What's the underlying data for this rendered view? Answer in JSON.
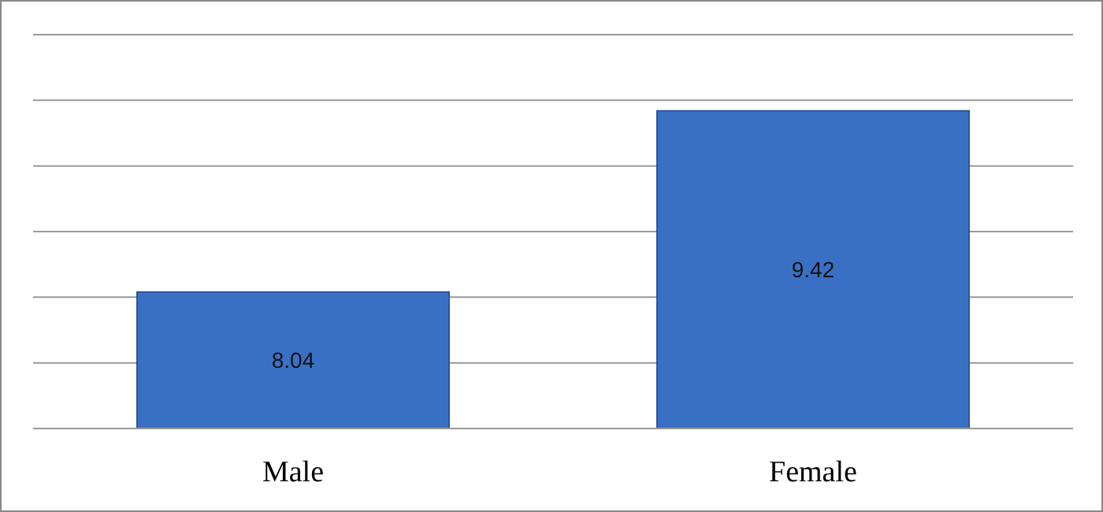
{
  "chart_data": {
    "type": "bar",
    "categories": [
      "Male",
      "Female"
    ],
    "values": [
      8.04,
      9.42
    ],
    "color": "#3a70c4",
    "ylim": [
      7,
      10
    ],
    "yticks": [
      {
        "value": 7,
        "label": null
      },
      {
        "value": 7.5,
        "label": null
      },
      {
        "value": 8,
        "label": null
      },
      {
        "value": 8.5,
        "label": null
      },
      {
        "value": 9,
        "label": null
      },
      {
        "value": 9.5,
        "label": null
      },
      {
        "value": 10,
        "label": null
      }
    ],
    "tick_labels": "x",
    "grid": "y",
    "data_labels": true
  }
}
